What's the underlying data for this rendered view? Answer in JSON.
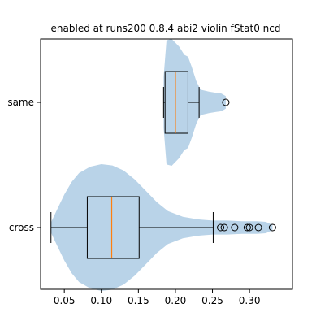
{
  "chart_data": {
    "type": "violin",
    "title": "enabled at runs200 0.8.4 abi2 violin fStat0 ncd",
    "orientation": "horizontal",
    "xlim": [
      0.018,
      0.358
    ],
    "xticks": [
      0.05,
      0.1,
      0.15,
      0.2,
      0.25,
      0.3
    ],
    "xtick_labels": [
      "0.05",
      "0.10",
      "0.15",
      "0.20",
      "0.25",
      "0.30"
    ],
    "categories": [
      "same",
      "cross"
    ],
    "colors": {
      "violin_fill": "#b9d3e8",
      "box_line": "#000000",
      "median_line": "#ff7f0e"
    },
    "series": [
      {
        "name": "same",
        "whisker_low": 0.184,
        "q1": 0.186,
        "median": 0.2,
        "q3": 0.217,
        "whisker_high": 0.232,
        "outliers": [
          0.268
        ],
        "violin_profile": [
          [
            0.184,
            0.4
          ],
          [
            0.188,
            0.98
          ],
          [
            0.195,
            1.0
          ],
          [
            0.205,
            0.88
          ],
          [
            0.212,
            0.75
          ],
          [
            0.217,
            0.72
          ],
          [
            0.222,
            0.56
          ],
          [
            0.228,
            0.34
          ],
          [
            0.234,
            0.2
          ],
          [
            0.245,
            0.17
          ],
          [
            0.255,
            0.15
          ],
          [
            0.262,
            0.14
          ],
          [
            0.268,
            0.1
          ]
        ]
      },
      {
        "name": "cross",
        "whisker_low": 0.032,
        "q1": 0.081,
        "median": 0.114,
        "q3": 0.151,
        "whisker_high": 0.251,
        "outliers": [
          0.261,
          0.266,
          0.28,
          0.297,
          0.3,
          0.312,
          0.331
        ],
        "violin_profile": [
          [
            0.032,
            0.08
          ],
          [
            0.04,
            0.28
          ],
          [
            0.05,
            0.52
          ],
          [
            0.06,
            0.72
          ],
          [
            0.07,
            0.86
          ],
          [
            0.085,
            0.96
          ],
          [
            0.1,
            1.0
          ],
          [
            0.115,
            0.98
          ],
          [
            0.13,
            0.9
          ],
          [
            0.145,
            0.76
          ],
          [
            0.16,
            0.58
          ],
          [
            0.175,
            0.4
          ],
          [
            0.19,
            0.26
          ],
          [
            0.21,
            0.17
          ],
          [
            0.23,
            0.13
          ],
          [
            0.25,
            0.11
          ],
          [
            0.27,
            0.11
          ],
          [
            0.29,
            0.1
          ],
          [
            0.31,
            0.1
          ],
          [
            0.322,
            0.09
          ],
          [
            0.331,
            0.04
          ]
        ]
      }
    ]
  }
}
